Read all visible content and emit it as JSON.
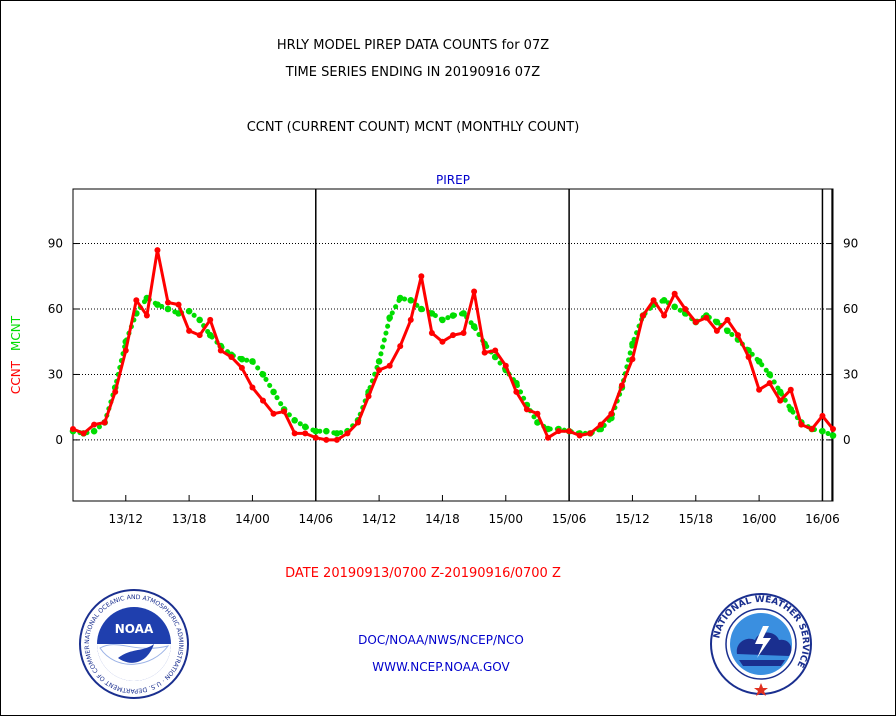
{
  "titles": {
    "line1": "HRLY MODEL PIREP DATA COUNTS for 07Z",
    "line2": "TIME SERIES ENDING IN 20190916 07Z",
    "line3": "CCNT (CURRENT COUNT) MCNT (MONTHLY COUNT)"
  },
  "footer": {
    "date_range": "DATE 20190913/0700 Z-20190916/0700 Z",
    "org": "DOC/NOAA/NWS/NCEP/NCO",
    "url": "WWW.NCEP.NOAA.GOV"
  },
  "logos": {
    "noaa_text": "NOAA",
    "noaa_ring_text": "NATIONAL OCEANIC AND ATMOSPHERIC ADMINISTRATION · U.S. DEPARTMENT OF COMMERCE",
    "nws_ring_text": "NATIONAL WEATHER SERVICE"
  },
  "colors": {
    "ccnt": "#ff0000",
    "mcnt": "#00dd00",
    "title_panel": "#0000cc",
    "footer_blue": "#0000cc",
    "date_red": "#ff0000"
  },
  "chart_data": {
    "type": "line",
    "panel_title": "PIREP",
    "ylabel_ccnt": "CCNT",
    "ylabel_mcnt": "MCNT",
    "ylim": [
      -28,
      115
    ],
    "yticks": [
      0,
      30,
      60,
      90
    ],
    "xlim": [
      0,
      72
    ],
    "xticks": [
      {
        "hour": 5,
        "label": "13/12"
      },
      {
        "hour": 11,
        "label": "13/18"
      },
      {
        "hour": 17,
        "label": "14/00"
      },
      {
        "hour": 23,
        "label": "14/06"
      },
      {
        "hour": 29,
        "label": "14/12"
      },
      {
        "hour": 35,
        "label": "14/18"
      },
      {
        "hour": 41,
        "label": "15/00"
      },
      {
        "hour": 47,
        "label": "15/06"
      },
      {
        "hour": 53,
        "label": "15/12"
      },
      {
        "hour": 59,
        "label": "15/18"
      },
      {
        "hour": 65,
        "label": "16/00"
      },
      {
        "hour": 71,
        "label": "16/06"
      }
    ],
    "grid_y": true,
    "vertical_markers": [
      23,
      47,
      71
    ],
    "series": [
      {
        "name": "CCNT",
        "color": "#ff0000",
        "values": [
          5,
          3,
          7,
          8,
          22,
          41,
          64,
          57,
          87,
          63,
          62,
          50,
          48,
          55,
          41,
          38,
          33,
          24,
          18,
          12,
          13,
          3,
          3,
          1,
          0,
          0,
          3,
          8,
          20,
          32,
          34,
          43,
          55,
          75,
          49,
          45,
          48,
          49,
          68,
          40,
          41,
          34,
          22,
          14,
          12,
          1,
          4,
          4,
          2,
          3,
          7,
          12,
          25,
          37,
          57,
          64,
          57,
          67,
          60,
          54,
          56,
          50,
          55,
          48,
          38,
          23,
          26,
          18,
          23,
          7,
          5,
          11,
          5
        ]
      },
      {
        "name": "MCNT",
        "color": "#00dd00",
        "values": [
          4,
          3,
          4,
          8,
          24,
          45,
          58,
          65,
          62,
          60,
          58,
          59,
          55,
          48,
          43,
          39,
          37,
          36,
          30,
          22,
          14,
          9,
          6,
          4,
          4,
          3,
          4,
          9,
          22,
          36,
          56,
          65,
          64,
          60,
          58,
          55,
          57,
          58,
          52,
          44,
          38,
          32,
          26,
          16,
          8,
          5,
          5,
          4,
          3,
          3,
          5,
          10,
          24,
          44,
          57,
          62,
          64,
          61,
          58,
          54,
          57,
          54,
          50,
          46,
          41,
          36,
          30,
          22,
          14,
          8,
          5,
          4,
          2
        ]
      }
    ]
  }
}
